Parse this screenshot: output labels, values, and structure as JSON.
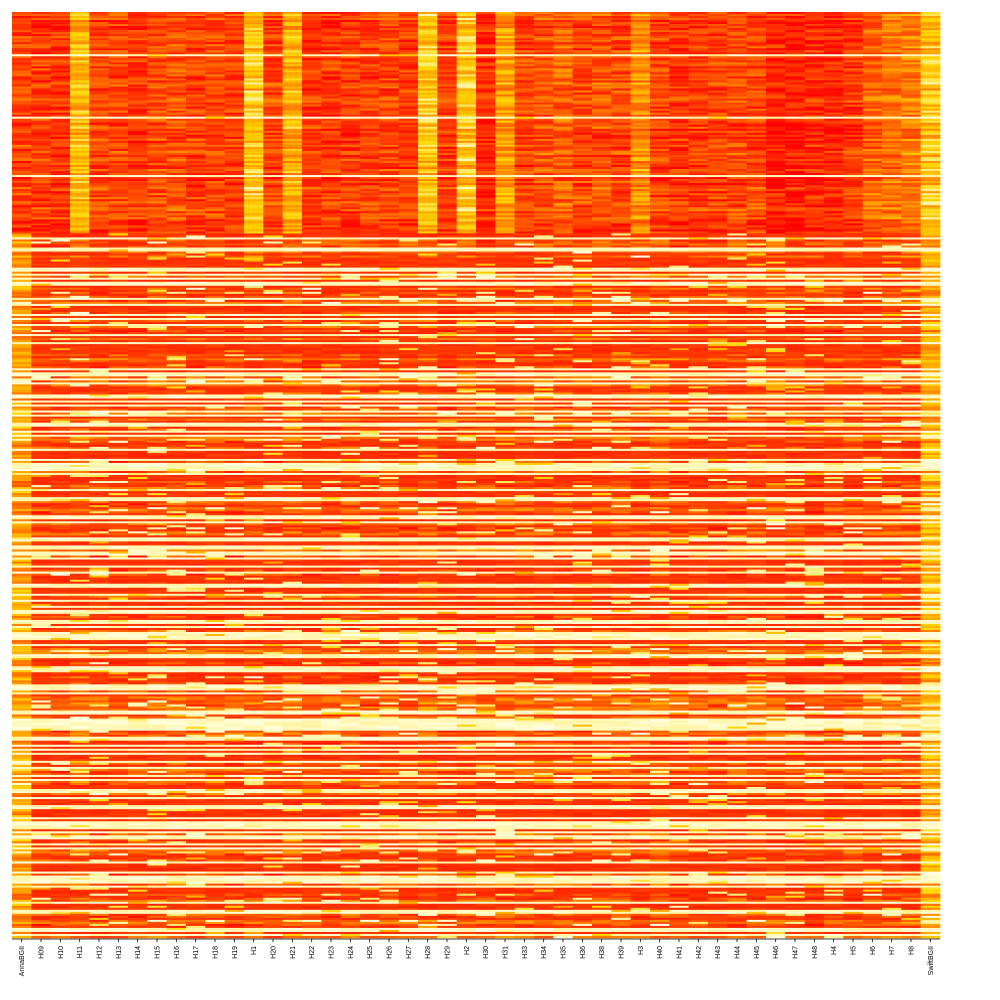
{
  "chart_data": {
    "type": "heatmap",
    "title": "",
    "xlabel": "",
    "ylabel": "",
    "columns": [
      "AnnaBGII",
      "H09",
      "H10",
      "H11",
      "H12",
      "H13",
      "H14",
      "H15",
      "H16",
      "H17",
      "H18",
      "H19",
      "H1",
      "H20",
      "H21",
      "H22",
      "H23",
      "H24",
      "H25",
      "H26",
      "H27",
      "H28",
      "H29",
      "H2",
      "H30",
      "H31",
      "H33",
      "H34",
      "H35",
      "H36",
      "H38",
      "H39",
      "H3",
      "H40",
      "H41",
      "H42",
      "H43",
      "H44",
      "H45",
      "H46",
      "H47",
      "H48",
      "H4",
      "H5",
      "H6",
      "H7",
      "H8",
      "SwiftBGII"
    ],
    "row_count": 460,
    "value_range": [
      0,
      1
    ],
    "colormap": [
      "#FF0000",
      "#FF4500",
      "#FF8C00",
      "#FFD700",
      "#FFFFE0"
    ],
    "blocks": [
      {
        "rows": [
          0,
          110
        ],
        "description_level": "high",
        "column_levels": [
          0.22,
          0.2,
          0.2,
          0.65,
          0.25,
          0.25,
          0.18,
          0.25,
          0.28,
          0.22,
          0.25,
          0.22,
          0.7,
          0.25,
          0.6,
          0.2,
          0.2,
          0.2,
          0.22,
          0.25,
          0.22,
          0.7,
          0.2,
          0.72,
          0.15,
          0.55,
          0.25,
          0.3,
          0.35,
          0.25,
          0.28,
          0.25,
          0.5,
          0.22,
          0.18,
          0.2,
          0.22,
          0.25,
          0.25,
          0.1,
          0.1,
          0.15,
          0.12,
          0.2,
          0.35,
          0.4,
          0.45,
          0.7
        ]
      },
      {
        "rows": [
          110,
          460
        ],
        "description_level": "sparse",
        "column_levels": [
          0.55,
          0.3,
          0.3,
          0.4,
          0.3,
          0.3,
          0.3,
          0.35,
          0.35,
          0.3,
          0.35,
          0.3,
          0.35,
          0.3,
          0.4,
          0.3,
          0.3,
          0.35,
          0.3,
          0.35,
          0.3,
          0.4,
          0.3,
          0.35,
          0.3,
          0.35,
          0.35,
          0.35,
          0.35,
          0.35,
          0.35,
          0.35,
          0.35,
          0.4,
          0.3,
          0.3,
          0.3,
          0.35,
          0.35,
          0.35,
          0.3,
          0.3,
          0.3,
          0.3,
          0.35,
          0.35,
          0.4,
          0.6
        ]
      }
    ],
    "grid": false,
    "legend": "none"
  }
}
